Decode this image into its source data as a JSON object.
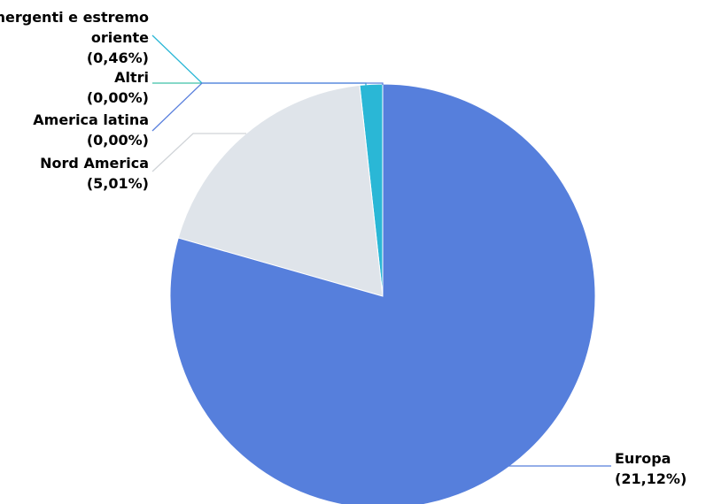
{
  "chart_data": {
    "type": "pie",
    "title": "",
    "slices": [
      {
        "name": "Mercati emergenti e estremo oriente",
        "label_lines": [
          "Mercati emergenti e estremo",
          "oriente",
          "(0,46%)"
        ],
        "percent_text": "0,46%",
        "value": 0.46,
        "color": "#2ab7d6"
      },
      {
        "name": "Altri",
        "label_lines": [
          "Altri",
          "(0,00%)"
        ],
        "percent_text": "0,00%",
        "value": 0.0,
        "color": "#3fc0a6"
      },
      {
        "name": "America latina",
        "label_lines": [
          "America latina",
          "(0,00%)"
        ],
        "percent_text": "0,00%",
        "value": 0.0,
        "color": "#5a80dd"
      },
      {
        "name": "Nord America",
        "label_lines": [
          "Nord America",
          "(5,01%)"
        ],
        "percent_text": "5,01%",
        "value": 5.01,
        "color": "#dfe4ea"
      },
      {
        "name": "Europa",
        "label_lines": [
          "Europa",
          "(21,12%)"
        ],
        "percent_text": "21,12%",
        "value": 21.12,
        "color": "#567fdc"
      }
    ]
  }
}
